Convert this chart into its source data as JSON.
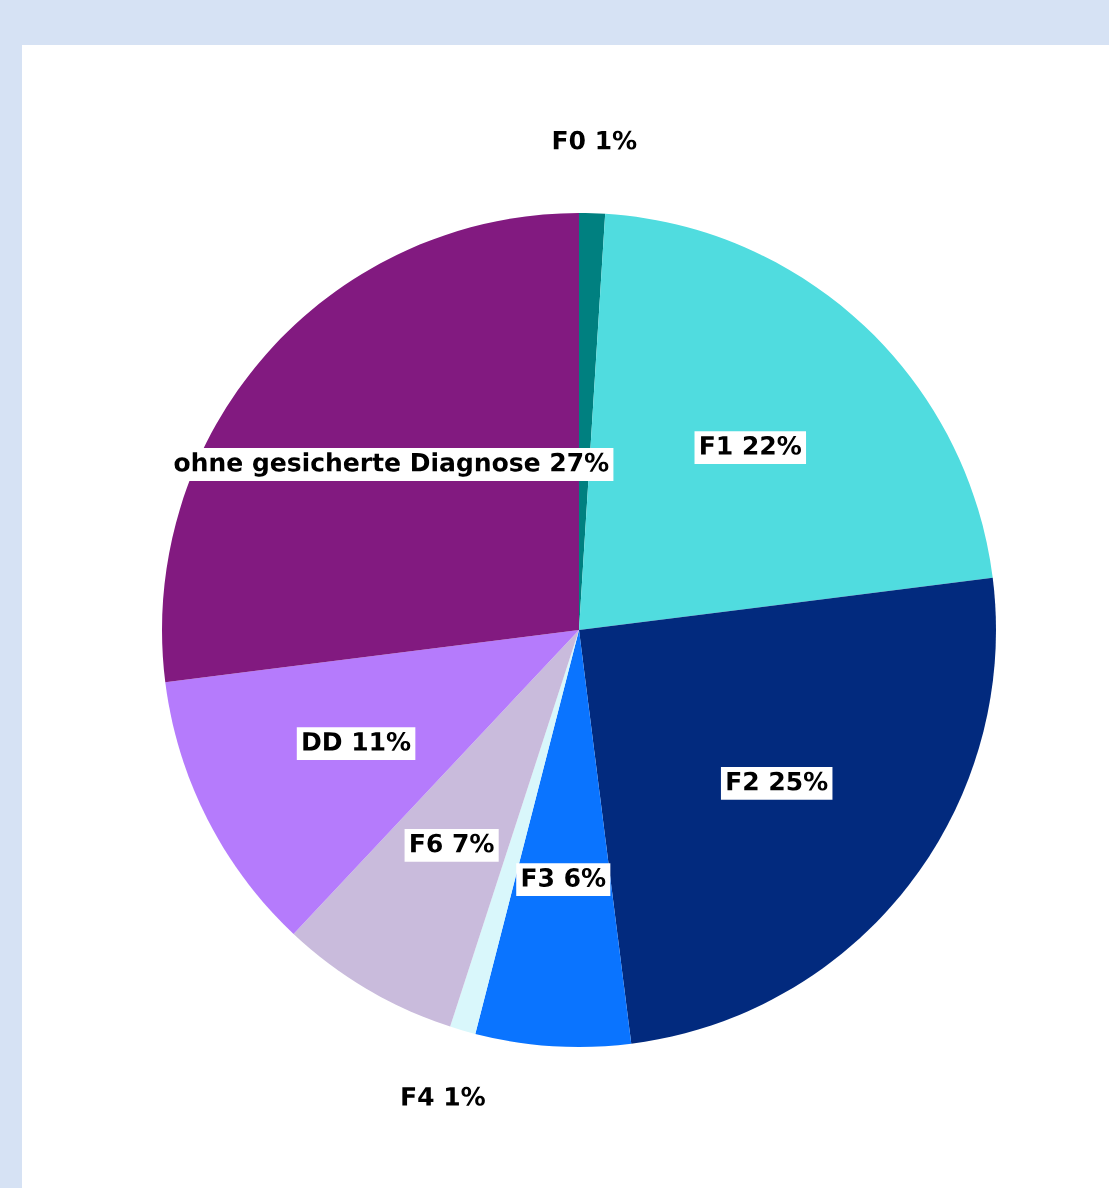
{
  "chart_data": {
    "type": "pie",
    "categories": [
      "F0",
      "F1",
      "F2",
      "F3",
      "F4",
      "F6",
      "DD",
      "ohne gesicherte Diagnose"
    ],
    "values": [
      1,
      22,
      25,
      6,
      1,
      7,
      11,
      27
    ],
    "value_labels": [
      "1%",
      "22%",
      "25%",
      "6%",
      "1%",
      "7%",
      "11%",
      "27%"
    ],
    "colors": [
      "#008080",
      "#50dcdf",
      "#022a7e",
      "#0a74ff",
      "#d9f7fb",
      "#c9bbdc",
      "#b57bfc",
      "#821a80"
    ],
    "legend": false
  }
}
